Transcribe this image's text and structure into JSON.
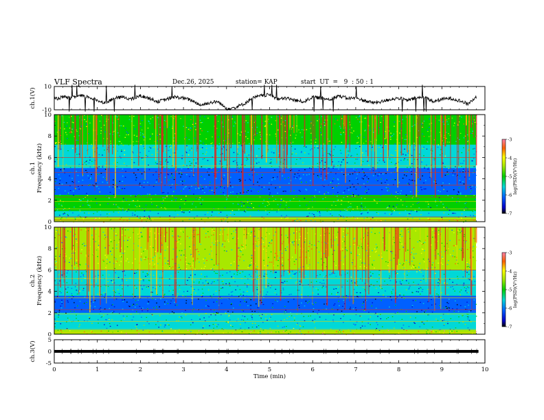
{
  "header": {
    "title": "VLF Spectra",
    "date": "Dec.26, 2025",
    "station": "station= KAP",
    "start": "start  UT  =   9  : 50 : 1"
  },
  "chart_data": [
    {
      "type": "line",
      "panel": "ch1-waveform",
      "ylabel": "ch.1(V)",
      "ylim": [
        -10,
        10
      ],
      "yticks": [
        10,
        -10
      ],
      "xlim": [
        0,
        9.85
      ],
      "series": [
        {
          "name": "ch.1",
          "x": [
            0,
            0.2,
            0.4,
            0.6,
            0.8,
            1.0,
            1.2,
            1.4,
            1.6,
            1.8,
            2.0,
            2.2,
            2.4,
            2.6,
            2.8,
            3.0,
            3.2,
            3.4,
            3.6,
            3.8,
            4.0,
            4.2,
            4.4,
            4.6,
            4.8,
            5.0,
            5.2,
            5.4,
            5.6,
            5.8,
            6.0,
            6.2,
            6.4,
            6.6,
            6.8,
            7.0,
            7.2,
            7.4,
            7.6,
            7.8,
            8.0,
            8.2,
            8.4,
            8.6,
            8.8,
            9.0,
            9.2,
            9.4,
            9.6,
            9.8
          ],
          "values": [
            -1,
            1,
            0,
            2,
            1,
            -2,
            -4,
            0,
            1,
            -1,
            2,
            0,
            -3,
            -1,
            1,
            0,
            -2,
            -6,
            -4,
            -3,
            -9,
            -8,
            -5,
            0,
            2,
            3,
            -1,
            0,
            -2,
            -3,
            1,
            0,
            -1,
            2,
            0,
            0,
            -2,
            -4,
            -3,
            -1,
            0,
            -2,
            0,
            1,
            -3,
            -1,
            0,
            -2,
            -5,
            1
          ]
        }
      ]
    },
    {
      "type": "heatmap",
      "panel": "ch1-spectrogram",
      "ylabel": "ch.1 Frequency (kHz)",
      "ylim": [
        0,
        10
      ],
      "yticks": [
        0,
        2,
        4,
        6,
        8,
        10
      ],
      "xlim": [
        0,
        9.85
      ],
      "colorbar": {
        "label": "log(PSD)(V²/Hz)",
        "range": [
          -7,
          -3
        ],
        "ticks": [
          -3,
          -4,
          -5,
          -6,
          -7
        ]
      },
      "bands": [
        {
          "from": 0.0,
          "to": 0.4,
          "level": -4.2
        },
        {
          "from": 0.4,
          "to": 1.0,
          "level": -5.3
        },
        {
          "from": 1.0,
          "to": 2.5,
          "level": -5.0
        },
        {
          "from": 2.5,
          "to": 3.5,
          "level": -5.6
        },
        {
          "from": 3.5,
          "to": 5.0,
          "level": -5.9
        },
        {
          "from": 5.0,
          "to": 6.0,
          "level": -5.4
        },
        {
          "from": 6.0,
          "to": 7.2,
          "level": -5.1
        },
        {
          "from": 7.2,
          "to": 10.0,
          "level": -4.6
        }
      ]
    },
    {
      "type": "heatmap",
      "panel": "ch2-spectrogram",
      "ylabel": "ch.2 Frequency (kHz)",
      "ylim": [
        0,
        10
      ],
      "yticks": [
        0,
        2,
        4,
        6,
        8,
        10
      ],
      "xlim": [
        0,
        9.85
      ],
      "colorbar": {
        "label": "log(PSD)(V²/Hz)",
        "range": [
          -7,
          -3
        ],
        "ticks": [
          -3,
          -4,
          -5,
          -6,
          -7
        ]
      },
      "bands": [
        {
          "from": 0.0,
          "to": 0.4,
          "level": -4.0
        },
        {
          "from": 0.4,
          "to": 2.0,
          "level": -5.2
        },
        {
          "from": 2.0,
          "to": 3.6,
          "level": -5.8
        },
        {
          "from": 3.6,
          "to": 6.0,
          "level": -5.2
        },
        {
          "from": 6.0,
          "to": 10.0,
          "level": -4.4
        }
      ]
    },
    {
      "type": "line",
      "panel": "ch3-waveform",
      "ylabel": "ch.3(V)",
      "ylim": [
        -5,
        5
      ],
      "yticks": [
        5,
        0,
        -5
      ],
      "xlim": [
        0,
        9.85
      ],
      "series": [
        {
          "name": "ch.3",
          "x": [
            0,
            9.85
          ],
          "values": [
            0,
            0
          ],
          "band_halfwidth": 0.6
        }
      ]
    }
  ],
  "xaxis": {
    "label": "Time  (min)",
    "ticks": [
      "0",
      "1",
      "2",
      "3",
      "4",
      "5",
      "6",
      "7",
      "8",
      "9",
      "10"
    ],
    "range": [
      0,
      10
    ]
  },
  "labels": {
    "ch1_amp_ylabel": "ch.1(V)",
    "ch1_freq_ylabel_a": "ch.1",
    "ch1_freq_ylabel_b": "Frequency  (kHz)",
    "ch2_freq_ylabel_a": "ch.2",
    "ch2_freq_ylabel_b": "Frequency  (kHz)",
    "ch3_amp_ylabel": "ch.3(V)",
    "colorbar_label": "log(PSD)(V²/Hz)",
    "amp1_ticks": [
      "10",
      "-10"
    ],
    "freq_ticks": [
      "0",
      "2",
      "4",
      "6",
      "8",
      "10"
    ],
    "amp3_ticks": [
      "5",
      "0",
      "-5"
    ],
    "cbar_ticks": [
      "-3",
      "-4",
      "-5",
      "-6",
      "-7"
    ]
  }
}
